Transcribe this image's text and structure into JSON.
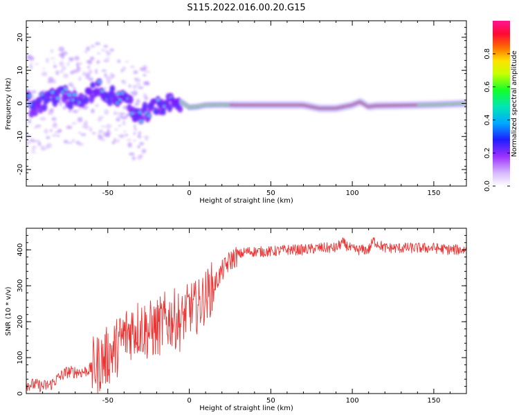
{
  "title": "S115.2022.016.00.20.G15",
  "chart_data": [
    {
      "type": "heatmap",
      "xlabel": "Height of straight line (km)",
      "ylabel": "Frequency (Hz)",
      "xlim": [
        -100,
        170
      ],
      "ylim": [
        -25,
        25
      ],
      "xticks": [
        -50,
        0,
        50,
        100,
        150
      ],
      "yticks": [
        -20,
        -10,
        0,
        10,
        20
      ],
      "colorbar": {
        "label": "Normalized spectral amplitude",
        "ticks": [
          "0.0",
          "0.2",
          "0.4",
          "0.6",
          "0.8"
        ],
        "range": [
          0,
          1
        ],
        "colormap": "rainbow",
        "colors": [
          "#ffffff",
          "#9b30ff",
          "#0000ff",
          "#00c8ff",
          "#00ff64",
          "#b4ff00",
          "#ffe000",
          "#ff5000",
          "#ff0044",
          "#ff1493"
        ]
      },
      "ridge": [
        {
          "x": -98,
          "f": -1.5
        },
        {
          "x": -94,
          "f": -0.5
        },
        {
          "x": -90,
          "f": 0.5
        },
        {
          "x": -85,
          "f": 1.5
        },
        {
          "x": -80,
          "f": 2.5
        },
        {
          "x": -75,
          "f": 2
        },
        {
          "x": -70,
          "f": 0
        },
        {
          "x": -65,
          "f": 1.5
        },
        {
          "x": -60,
          "f": 3
        },
        {
          "x": -55,
          "f": 4.5
        },
        {
          "x": -50,
          "f": 3
        },
        {
          "x": -45,
          "f": 2
        },
        {
          "x": -40,
          "f": 1
        },
        {
          "x": -35,
          "f": -1.5
        },
        {
          "x": -30,
          "f": -4
        },
        {
          "x": -25,
          "f": -2
        },
        {
          "x": -20,
          "f": -1.5
        },
        {
          "x": -15,
          "f": -0.5
        },
        {
          "x": -10,
          "f": 0
        },
        {
          "x": -5,
          "f": 0.5
        },
        {
          "x": 0,
          "f": -1.2
        },
        {
          "x": 5,
          "f": -1
        },
        {
          "x": 10,
          "f": -0.5
        },
        {
          "x": 20,
          "f": -0.4
        },
        {
          "x": 30,
          "f": -0.5
        },
        {
          "x": 50,
          "f": -0.5
        },
        {
          "x": 70,
          "f": -0.5
        },
        {
          "x": 75,
          "f": -1
        },
        {
          "x": 80,
          "f": -1.5
        },
        {
          "x": 90,
          "f": -1.5
        },
        {
          "x": 95,
          "f": -1
        },
        {
          "x": 100,
          "f": -0.5
        },
        {
          "x": 105,
          "f": 0.5
        },
        {
          "x": 110,
          "f": -1
        },
        {
          "x": 115,
          "f": -0.7
        },
        {
          "x": 130,
          "f": -0.6
        },
        {
          "x": 150,
          "f": -0.4
        },
        {
          "x": 170,
          "f": 0
        }
      ]
    },
    {
      "type": "line",
      "xlabel": "Height of straight line (km)",
      "ylabel": "SNR (10 * v/v)",
      "xlim": [
        -100,
        170
      ],
      "ylim": [
        0,
        460
      ],
      "xticks": [
        -50,
        0,
        50,
        100,
        150
      ],
      "yticks": [
        0,
        100,
        200,
        300,
        400
      ],
      "series": [
        {
          "color": "#ee3333",
          "x": [
            -100,
            -95,
            -90,
            -85,
            -80,
            -75,
            -70,
            -65,
            -60,
            -55,
            -50,
            -45,
            -40,
            -35,
            -30,
            -25,
            -20,
            -15,
            -10,
            -5,
            0,
            5,
            10,
            15,
            20,
            25,
            30,
            35,
            40,
            50,
            60,
            70,
            80,
            90,
            94,
            100,
            110,
            113,
            120,
            130,
            140,
            150,
            160,
            170
          ],
          "y": [
            25,
            25,
            20,
            25,
            45,
            60,
            60,
            60,
            70,
            85,
            105,
            125,
            160,
            180,
            185,
            175,
            180,
            200,
            210,
            200,
            240,
            240,
            270,
            300,
            340,
            370,
            385,
            395,
            395,
            395,
            400,
            400,
            405,
            405,
            420,
            400,
            400,
            425,
            405,
            405,
            405,
            405,
            400,
            400
          ]
        }
      ]
    }
  ]
}
